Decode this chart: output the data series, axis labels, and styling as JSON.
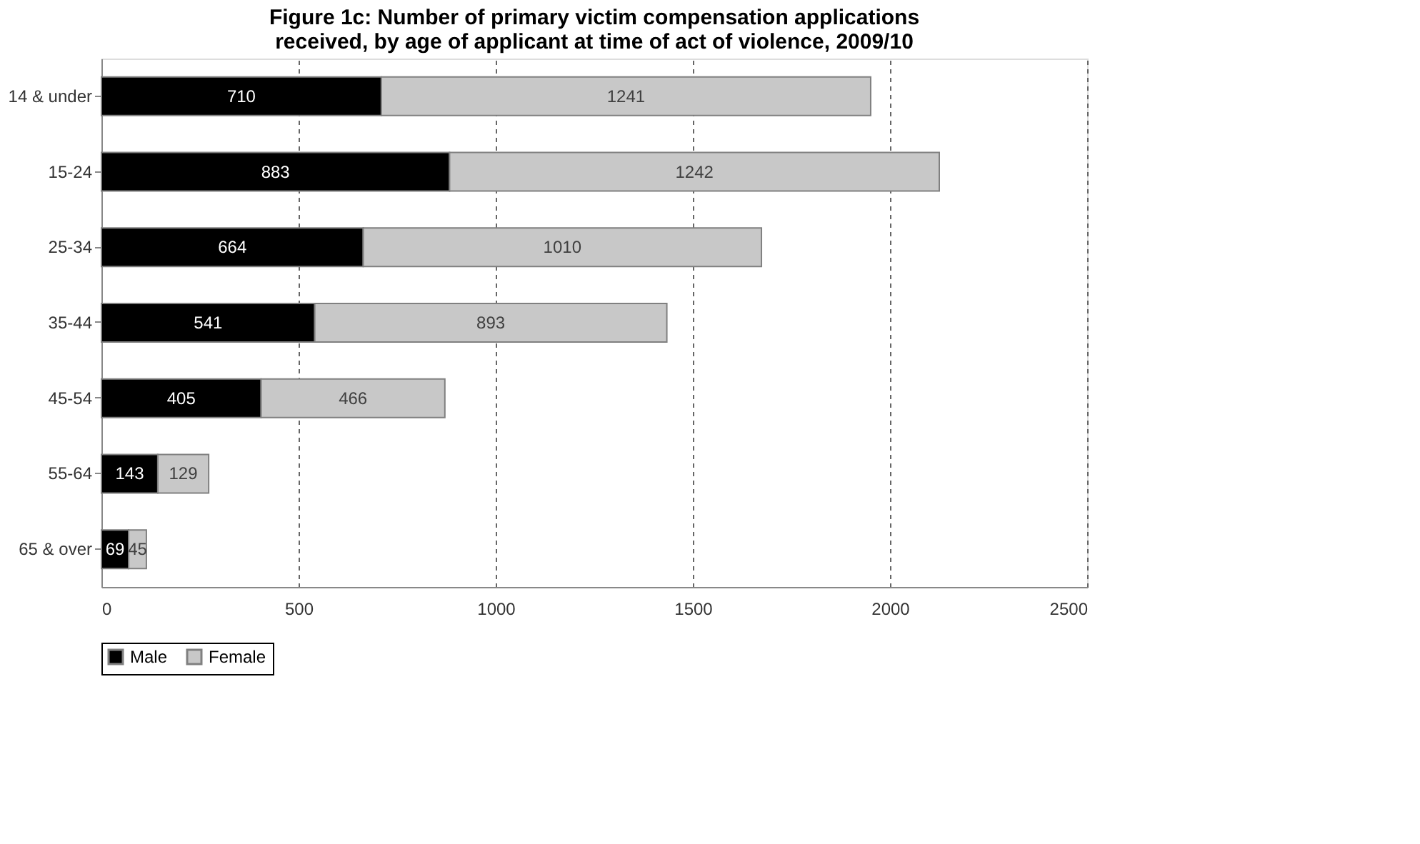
{
  "chart_data": {
    "type": "bar",
    "orientation": "horizontal",
    "stacked": true,
    "title": "Figure 1c: Number of primary victim compensation applications\nreceived, by age of applicant at time of act of violence, 2009/10",
    "categories": [
      "14 & under",
      "15-24",
      "25-34",
      "35-44",
      "45-54",
      "55-64",
      "65 & over"
    ],
    "series": [
      {
        "name": "Male",
        "color": "#000000",
        "values": [
          710,
          883,
          664,
          541,
          405,
          143,
          69
        ]
      },
      {
        "name": "Female",
        "color": "#c8c8c8",
        "values": [
          1241,
          1242,
          1010,
          893,
          466,
          129,
          45
        ]
      }
    ],
    "xlim": [
      0,
      2500
    ],
    "xticks": [
      0,
      500,
      1000,
      1500,
      2000,
      2500
    ],
    "grid": "x",
    "legend": "bottom",
    "data_labels": true
  }
}
